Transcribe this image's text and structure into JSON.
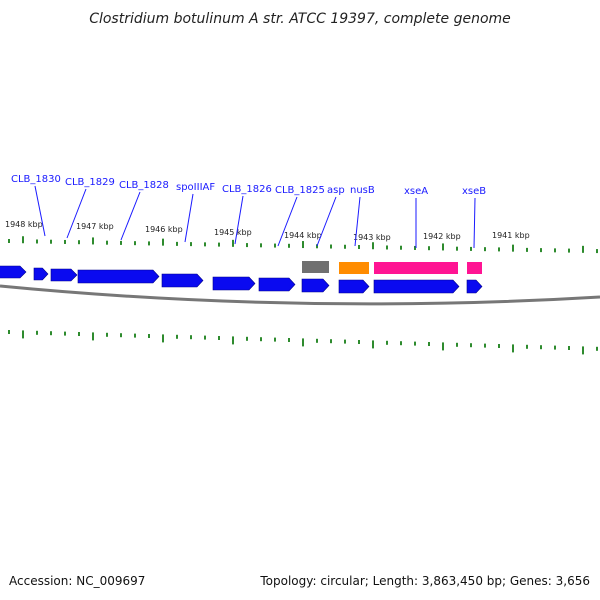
{
  "title": "Clostridium botulinum A str. ATCC 19397, complete genome",
  "footer": {
    "accession": "Accession: NC_009697",
    "summary": "Topology: circular; Length: 3,863,450 bp; Genes: 3,656"
  },
  "colors": {
    "cds": "#0a0af0",
    "trna": "#707070",
    "other_rna": "#ff8c00",
    "highlight": "#ff1493",
    "label": "#1a1aff",
    "backbone": "#777777",
    "tick": "#2e8b2e"
  },
  "kbp_labels": [
    "1948 kbp",
    "1947 kbp",
    "1946 kbp",
    "1945 kbp",
    "1944 kbp",
    "1943 kbp",
    "1942 kbp",
    "1941 kbp"
  ],
  "gene_labels": [
    "CLB_1830",
    "CLB_1829",
    "CLB_1828",
    "spoIIIAF",
    "CLB_1826",
    "CLB_1825",
    "asp",
    "nusB",
    "xseA",
    "xseB"
  ],
  "features": [
    {
      "name": "",
      "track": "forward",
      "type": "cds"
    },
    {
      "name": "CLB_1830",
      "track": "forward",
      "type": "cds"
    },
    {
      "name": "CLB_1829",
      "track": "forward",
      "type": "cds"
    },
    {
      "name": "CLB_1828",
      "track": "forward",
      "type": "cds"
    },
    {
      "name": "spoIIIAF",
      "track": "forward",
      "type": "cds"
    },
    {
      "name": "CLB_1826",
      "track": "forward",
      "type": "cds"
    },
    {
      "name": "CLB_1825",
      "track": "forward",
      "type": "cds"
    },
    {
      "name": "asp",
      "track": "forward",
      "type": "cds"
    },
    {
      "name": "asp",
      "track": "upper",
      "type": "trna"
    },
    {
      "name": "nusB",
      "track": "forward",
      "type": "cds"
    },
    {
      "name": "nusB",
      "track": "upper",
      "type": "other_rna"
    },
    {
      "name": "xseA",
      "track": "forward",
      "type": "cds"
    },
    {
      "name": "xseA",
      "track": "upper",
      "type": "highlight"
    },
    {
      "name": "xseB",
      "track": "forward",
      "type": "cds"
    },
    {
      "name": "xseB",
      "track": "upper",
      "type": "highlight"
    }
  ]
}
